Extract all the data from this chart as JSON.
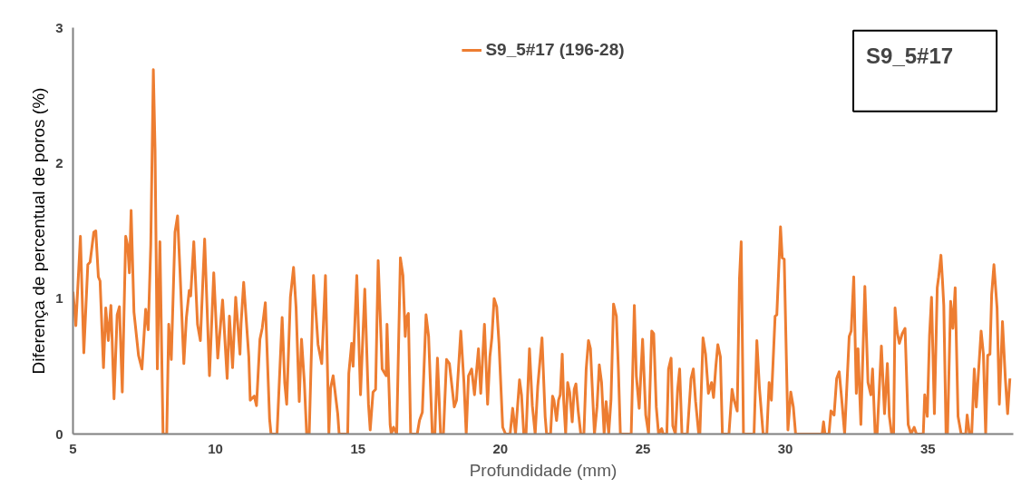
{
  "chart_data": {
    "type": "line",
    "xlabel": "Profundidade (mm)",
    "ylabel": "Diferença de percentual de poros (%)",
    "annotations": [
      "S9_5#17"
    ],
    "xlim": [
      5,
      38
    ],
    "ylim": [
      0,
      3
    ],
    "xticks": [
      5,
      10,
      15,
      20,
      25,
      30,
      35
    ],
    "yticks": [
      0,
      1,
      2,
      3
    ],
    "grid": false,
    "legend": "top",
    "marker": "none",
    "line_style": "solid",
    "series": [
      {
        "name": "S9_5#17 (196-28)",
        "color": "#ed7d31",
        "x": [
          5.0,
          5.1,
          5.26,
          5.38,
          5.52,
          5.6,
          5.73,
          5.8,
          5.89,
          5.95,
          6.07,
          6.15,
          6.24,
          6.33,
          6.37,
          6.44,
          6.55,
          6.63,
          6.73,
          6.85,
          6.92,
          6.98,
          7.04,
          7.14,
          7.3,
          7.42,
          7.55,
          7.64,
          7.73,
          7.82,
          7.88,
          7.96,
          8.05,
          8.16,
          8.29,
          8.36,
          8.45,
          8.58,
          8.67,
          8.76,
          8.89,
          8.98,
          9.08,
          9.13,
          9.24,
          9.37,
          9.47,
          9.62,
          9.79,
          9.94,
          10.08,
          10.25,
          10.41,
          10.49,
          10.6,
          10.71,
          10.86,
          10.9,
          10.99,
          11.17,
          11.22,
          11.36,
          11.44,
          11.56,
          11.64,
          11.75,
          11.9,
          11.95,
          12.16,
          12.34,
          12.43,
          12.5,
          12.63,
          12.74,
          12.83,
          12.94,
          13.02,
          13.12,
          13.2,
          13.29,
          13.44,
          13.6,
          13.73,
          13.86,
          13.98,
          14.04,
          14.13,
          14.29,
          14.34,
          14.64,
          14.68,
          14.78,
          14.83,
          14.96,
          15.09,
          15.24,
          15.37,
          15.43,
          15.53,
          15.62,
          15.71,
          15.85,
          15.99,
          16.02,
          16.13,
          16.17,
          16.25,
          16.36,
          16.49,
          16.58,
          16.66,
          16.7,
          16.77,
          16.85,
          17.08,
          17.16,
          17.26,
          17.39,
          17.48,
          17.61,
          17.7,
          17.79,
          17.9,
          18.0,
          18.11,
          18.21,
          18.38,
          18.46,
          18.61,
          18.72,
          18.8,
          18.88,
          18.99,
          19.09,
          19.23,
          19.31,
          19.44,
          19.55,
          19.63,
          19.7,
          19.78,
          19.87,
          19.95,
          20.08,
          20.18,
          20.34,
          20.43,
          20.53,
          20.67,
          20.74,
          20.82,
          20.9,
          21.02,
          21.12,
          21.22,
          21.31,
          21.46,
          21.57,
          21.62,
          21.76,
          21.83,
          21.88,
          21.97,
          22.04,
          22.1,
          22.17,
          22.22,
          22.29,
          22.36,
          22.43,
          22.52,
          22.59,
          22.65,
          22.73,
          22.82,
          22.93,
          23.01,
          23.09,
          23.16,
          23.3,
          23.39,
          23.47,
          23.55,
          23.64,
          23.71,
          23.8,
          23.88,
          23.97,
          24.07,
          24.14,
          24.21,
          24.59,
          24.7,
          24.77,
          24.87,
          24.99,
          25.1,
          25.2,
          25.31,
          25.38,
          25.47,
          25.55,
          25.66,
          25.71,
          25.84,
          25.9,
          25.99,
          26.05,
          26.14,
          26.22,
          26.29,
          26.37,
          26.56,
          26.69,
          26.77,
          26.85,
          26.96,
          27.0,
          27.11,
          27.2,
          27.3,
          27.41,
          27.48,
          27.56,
          27.63,
          27.72,
          27.79,
          28.02,
          28.13,
          28.2,
          28.31,
          28.39,
          28.45,
          28.53,
          28.9,
          29.0,
          29.09,
          29.22,
          29.35,
          29.43,
          29.51,
          29.64,
          29.7,
          29.83,
          29.89,
          29.96,
          30.09,
          30.19,
          30.28,
          30.36,
          31.29,
          31.34,
          31.39,
          31.53,
          31.6,
          31.71,
          31.8,
          31.89,
          31.98,
          32.08,
          32.24,
          32.31,
          32.4,
          32.49,
          32.55,
          32.65,
          32.79,
          32.9,
          33.0,
          33.06,
          33.15,
          33.22,
          33.37,
          33.48,
          33.58,
          33.65,
          33.73,
          33.8,
          33.85,
          33.92,
          34.0,
          34.1,
          34.2,
          34.31,
          34.41,
          34.52,
          34.6,
          34.84,
          34.89,
          34.98,
          35.06,
          35.13,
          35.23,
          35.33,
          35.38,
          35.46,
          35.51,
          35.56,
          35.64,
          35.69,
          35.8,
          35.88,
          35.96,
          36.06,
          36.17,
          36.33,
          36.38,
          36.46,
          36.54,
          36.63,
          36.7,
          36.87,
          36.95,
          37.03,
          37.1,
          37.18,
          37.24,
          37.32,
          37.43,
          37.51,
          37.62,
          37.72,
          37.8,
          37.88
        ],
        "values": [
          1.05,
          0.8,
          1.46,
          0.6,
          1.25,
          1.27,
          1.49,
          1.5,
          1.16,
          1.13,
          0.49,
          0.93,
          0.69,
          0.95,
          0.72,
          0.26,
          0.88,
          0.94,
          0.31,
          1.46,
          1.39,
          1.19,
          1.65,
          0.9,
          0.58,
          0.48,
          0.92,
          0.77,
          1.4,
          2.69,
          2.1,
          0.48,
          1.42,
          0,
          0,
          0.81,
          0.55,
          1.49,
          1.61,
          1.18,
          0.52,
          0.86,
          1.06,
          1.02,
          1.42,
          0.81,
          0.69,
          1.44,
          0.43,
          1.19,
          0.56,
          0.99,
          0.41,
          0.87,
          0.49,
          1.01,
          0.59,
          0.82,
          1.12,
          0.57,
          0.25,
          0.28,
          0.21,
          0.7,
          0.78,
          0.97,
          0.11,
          0,
          0,
          0.86,
          0.38,
          0.22,
          1.01,
          1.23,
          0.93,
          0.24,
          0.7,
          0.38,
          0,
          0,
          1.17,
          0.66,
          0.52,
          1.17,
          0,
          0.34,
          0.43,
          0.15,
          0,
          0,
          0.45,
          0.67,
          0.5,
          1.17,
          0.29,
          1.07,
          0.22,
          0.03,
          0.31,
          0.33,
          1.28,
          0.48,
          0.43,
          0.81,
          0.07,
          0,
          0.05,
          0,
          1.3,
          1.17,
          0.72,
          0.86,
          0.89,
          0,
          0,
          0.1,
          0.16,
          0.88,
          0.72,
          0,
          0,
          0.56,
          0,
          0,
          0.55,
          0.52,
          0.2,
          0.25,
          0.76,
          0.38,
          0,
          0.43,
          0.48,
          0.29,
          0.63,
          0.3,
          0.81,
          0.22,
          0.57,
          0.71,
          1.0,
          0.94,
          0.67,
          0.05,
          0,
          0,
          0.19,
          0,
          0.4,
          0.29,
          0,
          0,
          0.63,
          0.21,
          0,
          0.35,
          0.71,
          0.13,
          0,
          0,
          0.28,
          0.25,
          0.1,
          0.25,
          0.29,
          0.59,
          0.25,
          0,
          0.38,
          0.31,
          0.09,
          0.33,
          0.37,
          0.17,
          0,
          0,
          0.48,
          0.69,
          0.63,
          0,
          0.2,
          0.51,
          0.38,
          0,
          0.24,
          0,
          0.25,
          0.96,
          0.87,
          0.48,
          0,
          0,
          0.95,
          0.43,
          0.19,
          0.7,
          0.14,
          0,
          0.76,
          0.74,
          0.2,
          0,
          0.04,
          0,
          0,
          0.48,
          0.56,
          0.06,
          0,
          0.33,
          0.48,
          0,
          0,
          0.41,
          0.48,
          0.24,
          0,
          0,
          0.71,
          0.59,
          0.3,
          0.38,
          0.27,
          0.5,
          0.66,
          0.57,
          0,
          0,
          0.33,
          0.25,
          0.17,
          1.15,
          1.42,
          0,
          0,
          0.69,
          0.34,
          0,
          0,
          0.38,
          0.25,
          0.87,
          0.88,
          1.53,
          1.3,
          1.29,
          0.03,
          0.31,
          0.2,
          0,
          0,
          0.09,
          0,
          0,
          0.17,
          0.14,
          0.41,
          0.46,
          0.25,
          0,
          0.72,
          0.76,
          1.16,
          0.3,
          0.63,
          0.07,
          1.09,
          0.38,
          0.29,
          0.48,
          0,
          0,
          0.65,
          0.15,
          0.52,
          0.13,
          0,
          0,
          0.93,
          0.76,
          0.67,
          0.74,
          0.78,
          0.07,
          0,
          0.05,
          0,
          0,
          0.29,
          0.13,
          0.73,
          1.01,
          0.15,
          1.08,
          1.16,
          1.32,
          1.15,
          0.95,
          0,
          0,
          0.98,
          0.78,
          1.08,
          0.13,
          0,
          0,
          0.14,
          0,
          0,
          0.48,
          0.2,
          0.76,
          0.59,
          0,
          0.58,
          0.59,
          1.03,
          1.25,
          0.93,
          0.22,
          0.83,
          0.41,
          0.15,
          0.41
        ]
      }
    ]
  }
}
